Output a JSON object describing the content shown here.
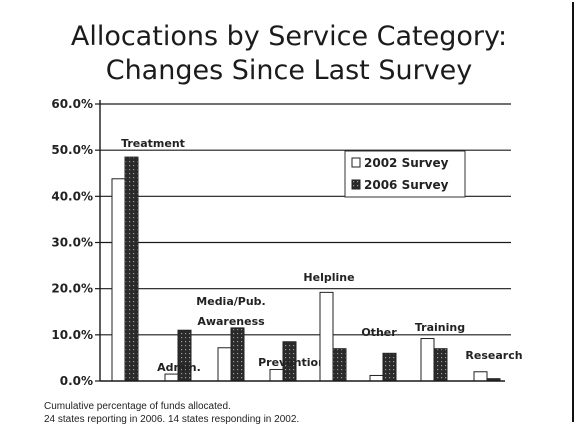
{
  "title_line1": "Allocations by Service Category:",
  "title_line2": "Changes Since Last Survey",
  "footnote_line1": "Cumulative percentage of funds allocated.",
  "footnote_line2": "24 states reporting in 2006. 14 states responding in 2002.",
  "colors": {
    "survey_2002": "#ffffff",
    "survey_2006": "#2a2a2a",
    "grid": "#1a1a1a"
  },
  "chart_data": {
    "type": "bar",
    "title": "Allocations by Service Category: Changes Since Last Survey",
    "xlabel": "",
    "ylabel": "",
    "ylim": [
      0,
      60
    ],
    "yticks": [
      "0.0%",
      "10.0%",
      "20.0%",
      "30.0%",
      "40.0%",
      "50.0%",
      "60.0%"
    ],
    "categories": [
      "Treatment",
      "Admin.",
      "Media/Pub. Awareness",
      "Prevention",
      "Helpline",
      "Other",
      "Training",
      "Research"
    ],
    "series": [
      {
        "name": "2002 Survey",
        "values": [
          43.8,
          1.5,
          7.2,
          2.5,
          19.2,
          1.2,
          9.2,
          2.0
        ]
      },
      {
        "name": "2006 Survey",
        "values": [
          48.5,
          11.0,
          11.5,
          8.5,
          7.0,
          6.0,
          7.0,
          0.5
        ]
      }
    ],
    "legend": {
      "placement": "top-right",
      "labels": [
        "2002 Survey",
        "2006 Survey"
      ]
    },
    "grid": "horizontal"
  }
}
